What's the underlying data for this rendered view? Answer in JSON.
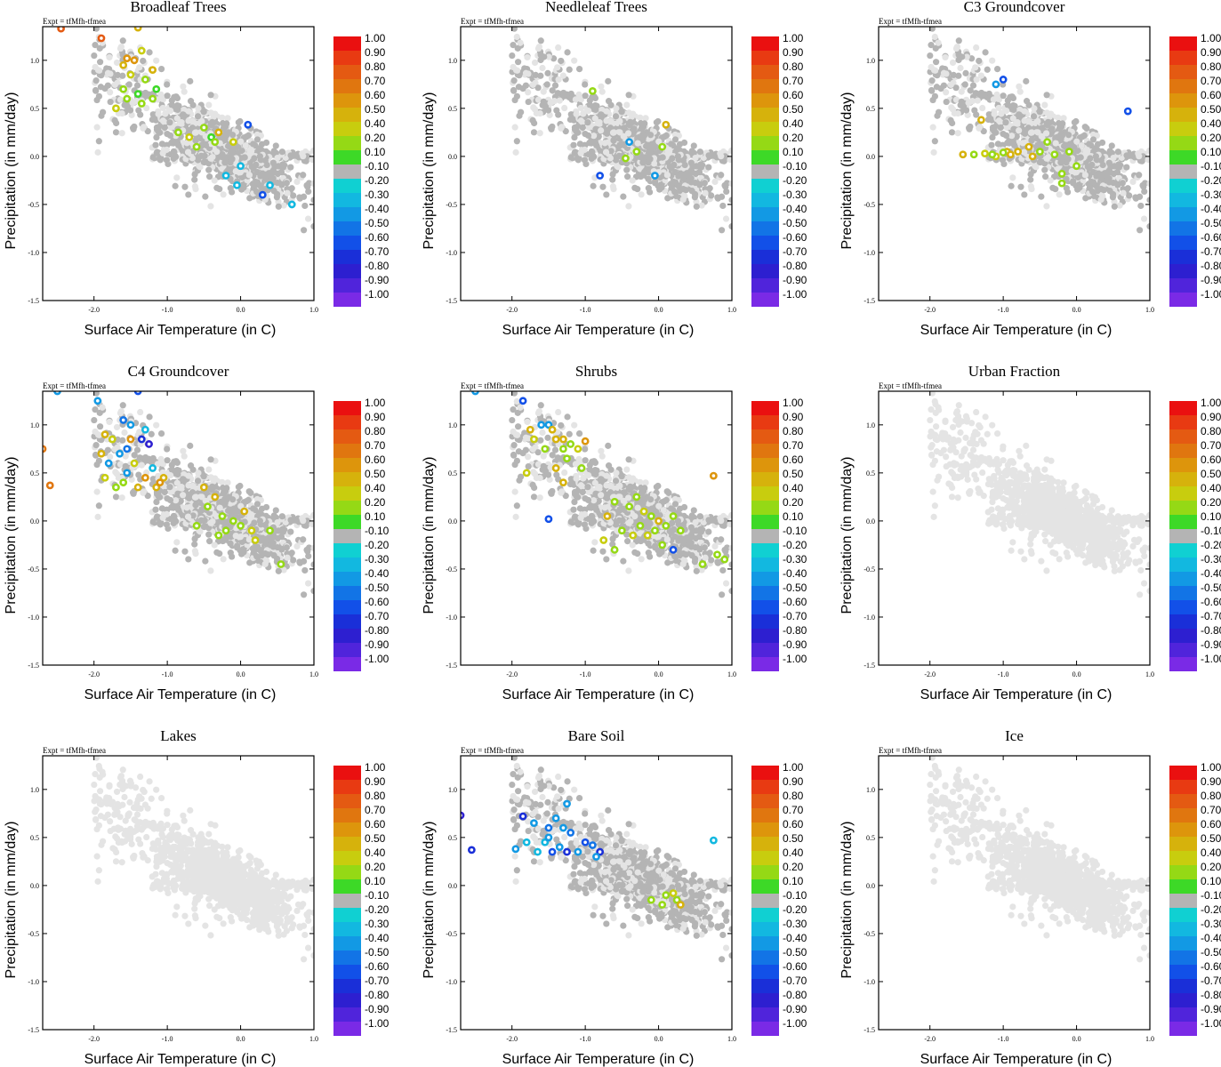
{
  "figure": {
    "expt_label": "Expt = tfMfh-tfmea",
    "xlabel": "Surface Air Temperature (in C)",
    "ylabel": "Precipitation (in mm/day)",
    "x_ticks": [
      "-2.0",
      "-1.0",
      "0.0",
      "1.0"
    ],
    "y_ticks": [
      "1.0",
      "0.5",
      "0.0",
      "-0.5",
      "-1.0",
      "-1.5"
    ],
    "colorbar": {
      "labels": [
        "1.00",
        "0.90",
        "0.80",
        "0.70",
        "0.60",
        "0.50",
        "0.40",
        "0.20",
        "0.10",
        "-0.10",
        "-0.20",
        "-0.30",
        "-0.40",
        "-0.50",
        "-0.60",
        "-0.70",
        "-0.80",
        "-0.90",
        "-1.00"
      ],
      "colors": [
        "#ea1010",
        "#e83a12",
        "#e45a12",
        "#e0760f",
        "#dd950c",
        "#d6b20c",
        "#c8cd0e",
        "#95d915",
        "#3dd927",
        "#b4b4b4",
        "#10d0d2",
        "#12b8e0",
        "#1299e4",
        "#1274e6",
        "#1250e8",
        "#1a2fd8",
        "#2d1fd0",
        "#5024db",
        "#7a2ae6"
      ]
    }
  },
  "chart_data": [
    {
      "type": "scatter",
      "title": "Broadleaf Trees",
      "xlim": [
        -2.7,
        1.0
      ],
      "ylim": [
        -1.5,
        1.35
      ],
      "xlabel": "Surface Air Temperature (in C)",
      "ylabel": "Precipitation (in mm/day)",
      "colorbar_range": [
        -1.0,
        1.0
      ],
      "highlight": [
        {
          "x": -2.45,
          "y": 1.33,
          "c": 0.8
        },
        {
          "x": -1.9,
          "y": 1.23,
          "c": 0.75
        },
        {
          "x": -1.4,
          "y": 1.34,
          "c": 0.45
        },
        {
          "x": -1.6,
          "y": 0.95,
          "c": 0.45
        },
        {
          "x": -1.55,
          "y": 1.02,
          "c": 0.55
        },
        {
          "x": -1.45,
          "y": 1.0,
          "c": 0.6
        },
        {
          "x": -1.35,
          "y": 1.1,
          "c": 0.35
        },
        {
          "x": -1.2,
          "y": 0.9,
          "c": 0.5
        },
        {
          "x": -1.5,
          "y": 0.85,
          "c": 0.3
        },
        {
          "x": -1.3,
          "y": 0.8,
          "c": 0.2
        },
        {
          "x": -1.6,
          "y": 0.7,
          "c": 0.2
        },
        {
          "x": -1.4,
          "y": 0.65,
          "c": 0.15
        },
        {
          "x": -1.15,
          "y": 0.7,
          "c": 0.15
        },
        {
          "x": -1.55,
          "y": 0.6,
          "c": 0.2
        },
        {
          "x": -1.7,
          "y": 0.5,
          "c": 0.35
        },
        {
          "x": -1.35,
          "y": 0.55,
          "c": 0.2
        },
        {
          "x": -1.2,
          "y": 0.6,
          "c": 0.2
        },
        {
          "x": -0.85,
          "y": 0.25,
          "c": 0.2
        },
        {
          "x": -0.7,
          "y": 0.2,
          "c": 0.35
        },
        {
          "x": -0.5,
          "y": 0.3,
          "c": 0.2
        },
        {
          "x": -0.4,
          "y": 0.2,
          "c": 0.15
        },
        {
          "x": -0.3,
          "y": 0.25,
          "c": 0.4
        },
        {
          "x": -0.35,
          "y": 0.15,
          "c": 0.2
        },
        {
          "x": -0.6,
          "y": 0.1,
          "c": 0.25
        },
        {
          "x": -0.1,
          "y": 0.15,
          "c": 0.3
        },
        {
          "x": 0.1,
          "y": 0.33,
          "c": -0.5
        },
        {
          "x": -0.05,
          "y": -0.3,
          "c": -0.25
        },
        {
          "x": 0.3,
          "y": -0.4,
          "c": -0.5
        },
        {
          "x": 0.7,
          "y": -0.5,
          "c": -0.25
        },
        {
          "x": 0.4,
          "y": -0.3,
          "c": -0.2
        },
        {
          "x": -0.2,
          "y": -0.2,
          "c": -0.2
        },
        {
          "x": 0.0,
          "y": -0.1,
          "c": -0.2
        }
      ]
    },
    {
      "type": "scatter",
      "title": "Needleleaf Trees",
      "xlim": [
        -2.7,
        1.0
      ],
      "ylim": [
        -1.5,
        1.35
      ],
      "xlabel": "Surface Air Temperature (in C)",
      "ylabel": "Precipitation (in mm/day)",
      "colorbar_range": [
        -1.0,
        1.0
      ],
      "highlight": [
        {
          "x": -0.9,
          "y": 0.68,
          "c": 0.25
        },
        {
          "x": 0.1,
          "y": 0.33,
          "c": 0.4
        },
        {
          "x": -0.8,
          "y": -0.2,
          "c": -0.5
        },
        {
          "x": -0.45,
          "y": -0.02,
          "c": 0.2
        },
        {
          "x": 0.05,
          "y": 0.1,
          "c": 0.2
        },
        {
          "x": -0.3,
          "y": 0.05,
          "c": 0.2
        },
        {
          "x": -0.05,
          "y": -0.2,
          "c": -0.3
        },
        {
          "x": -0.4,
          "y": 0.15,
          "c": -0.3
        }
      ]
    },
    {
      "type": "scatter",
      "title": "C3 Groundcover",
      "xlim": [
        -2.7,
        1.0
      ],
      "ylim": [
        -1.5,
        1.35
      ],
      "xlabel": "Surface Air Temperature (in C)",
      "ylabel": "Precipitation (in mm/day)",
      "colorbar_range": [
        -1.0,
        1.0
      ],
      "highlight": [
        {
          "x": -1.0,
          "y": 0.8,
          "c": -0.5
        },
        {
          "x": -1.1,
          "y": 0.75,
          "c": -0.3
        },
        {
          "x": 0.7,
          "y": 0.47,
          "c": -0.5
        },
        {
          "x": -1.55,
          "y": 0.02,
          "c": 0.4
        },
        {
          "x": -1.4,
          "y": 0.02,
          "c": 0.2
        },
        {
          "x": -1.25,
          "y": 0.03,
          "c": 0.35
        },
        {
          "x": -1.1,
          "y": 0.0,
          "c": 0.3
        },
        {
          "x": -0.95,
          "y": 0.05,
          "c": 0.4
        },
        {
          "x": -0.8,
          "y": 0.05,
          "c": 0.5
        },
        {
          "x": -0.65,
          "y": 0.1,
          "c": 0.5
        },
        {
          "x": -0.5,
          "y": 0.05,
          "c": 0.2
        },
        {
          "x": -0.3,
          "y": 0.02,
          "c": 0.2
        },
        {
          "x": -0.1,
          "y": 0.05,
          "c": 0.2
        },
        {
          "x": 0.0,
          "y": -0.1,
          "c": 0.2
        },
        {
          "x": -1.0,
          "y": 0.04,
          "c": 0.2
        },
        {
          "x": -0.2,
          "y": -0.28,
          "c": 0.2
        },
        {
          "x": -1.3,
          "y": 0.38,
          "c": 0.4
        },
        {
          "x": -0.9,
          "y": 0.02,
          "c": 0.4
        },
        {
          "x": -1.15,
          "y": 0.02,
          "c": 0.2
        },
        {
          "x": -0.6,
          "y": 0.0,
          "c": 0.4
        },
        {
          "x": -0.4,
          "y": 0.15,
          "c": 0.2
        },
        {
          "x": -0.2,
          "y": -0.18,
          "c": 0.2
        }
      ]
    },
    {
      "type": "scatter",
      "title": "C4 Groundcover",
      "xlim": [
        -2.7,
        1.0
      ],
      "ylim": [
        -1.5,
        1.35
      ],
      "xlabel": "Surface Air Temperature (in C)",
      "ylabel": "Precipitation (in mm/day)",
      "colorbar_range": [
        -1.0,
        1.0
      ],
      "highlight": [
        {
          "x": -2.5,
          "y": 1.35,
          "c": -0.3
        },
        {
          "x": -2.7,
          "y": 0.75,
          "c": 0.7
        },
        {
          "x": -2.6,
          "y": 0.37,
          "c": 0.7
        },
        {
          "x": -1.95,
          "y": 1.25,
          "c": -0.3
        },
        {
          "x": -1.4,
          "y": 1.35,
          "c": -0.55
        },
        {
          "x": -1.6,
          "y": 1.05,
          "c": -0.4
        },
        {
          "x": -1.5,
          "y": 1.0,
          "c": -0.3
        },
        {
          "x": -1.3,
          "y": 0.95,
          "c": -0.2
        },
        {
          "x": -1.85,
          "y": 0.9,
          "c": 0.45
        },
        {
          "x": -1.75,
          "y": 0.85,
          "c": 0.3
        },
        {
          "x": -1.5,
          "y": 0.85,
          "c": 0.6
        },
        {
          "x": -1.35,
          "y": 0.85,
          "c": -0.7
        },
        {
          "x": -1.25,
          "y": 0.8,
          "c": -0.8
        },
        {
          "x": -1.55,
          "y": 0.75,
          "c": -0.4
        },
        {
          "x": -1.65,
          "y": 0.7,
          "c": -0.3
        },
        {
          "x": -1.9,
          "y": 0.7,
          "c": 0.5
        },
        {
          "x": -1.8,
          "y": 0.6,
          "c": -0.3
        },
        {
          "x": -1.45,
          "y": 0.6,
          "c": 0.3
        },
        {
          "x": -1.2,
          "y": 0.55,
          "c": -0.2
        },
        {
          "x": -1.3,
          "y": 0.45,
          "c": 0.6
        },
        {
          "x": -1.05,
          "y": 0.45,
          "c": 0.5
        },
        {
          "x": -1.55,
          "y": 0.5,
          "c": -0.3
        },
        {
          "x": -1.85,
          "y": 0.45,
          "c": 0.3
        },
        {
          "x": -1.7,
          "y": 0.35,
          "c": 0.2
        },
        {
          "x": -1.4,
          "y": 0.35,
          "c": 0.45
        },
        {
          "x": -1.6,
          "y": 0.4,
          "c": 0.2
        },
        {
          "x": -0.5,
          "y": 0.35,
          "c": 0.4
        },
        {
          "x": -0.35,
          "y": 0.25,
          "c": 0.4
        },
        {
          "x": -0.45,
          "y": 0.15,
          "c": 0.2
        },
        {
          "x": -0.25,
          "y": 0.05,
          "c": 0.2
        },
        {
          "x": -0.1,
          "y": 0.0,
          "c": 0.2
        },
        {
          "x": 0.0,
          "y": -0.05,
          "c": 0.2
        },
        {
          "x": 0.15,
          "y": -0.1,
          "c": 0.3
        },
        {
          "x": -0.2,
          "y": -0.1,
          "c": 0.2
        },
        {
          "x": 0.2,
          "y": -0.2,
          "c": 0.3
        },
        {
          "x": 0.4,
          "y": -0.1,
          "c": 0.2
        },
        {
          "x": 0.55,
          "y": -0.45,
          "c": 0.2
        },
        {
          "x": -0.6,
          "y": -0.05,
          "c": 0.2
        },
        {
          "x": -0.3,
          "y": -0.15,
          "c": 0.2
        },
        {
          "x": 0.05,
          "y": 0.1,
          "c": 0.4
        },
        {
          "x": -1.15,
          "y": 0.35,
          "c": 0.4
        },
        {
          "x": -1.1,
          "y": 0.4,
          "c": 0.6
        }
      ]
    },
    {
      "type": "scatter",
      "title": "Shrubs",
      "xlim": [
        -2.7,
        1.0
      ],
      "ylim": [
        -1.5,
        1.35
      ],
      "xlabel": "Surface Air Temperature (in C)",
      "ylabel": "Precipitation (in mm/day)",
      "colorbar_range": [
        -1.0,
        1.0
      ],
      "highlight": [
        {
          "x": -2.5,
          "y": 1.35,
          "c": -0.3
        },
        {
          "x": -1.85,
          "y": 1.25,
          "c": -0.5
        },
        {
          "x": -1.6,
          "y": 1.0,
          "c": -0.3
        },
        {
          "x": -1.5,
          "y": 1.0,
          "c": -0.3
        },
        {
          "x": -1.75,
          "y": 0.95,
          "c": 0.4
        },
        {
          "x": -1.45,
          "y": 0.95,
          "c": 0.4
        },
        {
          "x": -1.4,
          "y": 0.85,
          "c": 0.4
        },
        {
          "x": -1.3,
          "y": 0.85,
          "c": 0.4
        },
        {
          "x": -1.7,
          "y": 0.85,
          "c": 0.3
        },
        {
          "x": -1.55,
          "y": 0.75,
          "c": 0.2
        },
        {
          "x": -1.3,
          "y": 0.75,
          "c": 0.2
        },
        {
          "x": -1.2,
          "y": 0.8,
          "c": 0.2
        },
        {
          "x": -1.0,
          "y": 0.83,
          "c": 0.6
        },
        {
          "x": -1.1,
          "y": 0.75,
          "c": 0.3
        },
        {
          "x": -1.25,
          "y": 0.65,
          "c": 0.2
        },
        {
          "x": -1.05,
          "y": 0.55,
          "c": 0.2
        },
        {
          "x": -1.4,
          "y": 0.55,
          "c": 0.4
        },
        {
          "x": -1.8,
          "y": 0.5,
          "c": 0.3
        },
        {
          "x": -1.3,
          "y": 0.4,
          "c": 0.4
        },
        {
          "x": -0.6,
          "y": 0.2,
          "c": 0.2
        },
        {
          "x": -0.4,
          "y": 0.15,
          "c": 0.2
        },
        {
          "x": -0.3,
          "y": 0.25,
          "c": 0.2
        },
        {
          "x": -0.2,
          "y": 0.1,
          "c": 0.3
        },
        {
          "x": -0.1,
          "y": 0.05,
          "c": 0.2
        },
        {
          "x": 0.0,
          "y": 0.0,
          "c": 0.4
        },
        {
          "x": 0.1,
          "y": -0.05,
          "c": 0.2
        },
        {
          "x": 0.2,
          "y": 0.05,
          "c": 0.2
        },
        {
          "x": 0.3,
          "y": -0.1,
          "c": 0.2
        },
        {
          "x": -0.5,
          "y": -0.1,
          "c": 0.2
        },
        {
          "x": -0.35,
          "y": -0.15,
          "c": 0.3
        },
        {
          "x": -0.25,
          "y": -0.05,
          "c": 0.2
        },
        {
          "x": -0.15,
          "y": -0.15,
          "c": 0.3
        },
        {
          "x": -0.05,
          "y": -0.1,
          "c": 0.2
        },
        {
          "x": 0.75,
          "y": 0.47,
          "c": 0.6
        },
        {
          "x": 0.6,
          "y": -0.45,
          "c": 0.2
        },
        {
          "x": 0.8,
          "y": -0.35,
          "c": 0.2
        },
        {
          "x": 0.9,
          "y": -0.4,
          "c": 0.2
        },
        {
          "x": -1.5,
          "y": 0.02,
          "c": -0.5
        },
        {
          "x": -0.75,
          "y": -0.2,
          "c": 0.3
        },
        {
          "x": -0.6,
          "y": -0.3,
          "c": 0.2
        },
        {
          "x": 0.2,
          "y": -0.3,
          "c": -0.5
        },
        {
          "x": -0.7,
          "y": 0.05,
          "c": 0.4
        },
        {
          "x": 0.05,
          "y": -0.25,
          "c": 0.2
        }
      ]
    },
    {
      "type": "scatter",
      "title": "Urban Fraction",
      "xlim": [
        -2.7,
        1.0
      ],
      "ylim": [
        -1.5,
        1.35
      ],
      "xlabel": "Surface Air Temperature (in C)",
      "ylabel": "Precipitation (in mm/day)",
      "colorbar_range": [
        -1.0,
        1.0
      ],
      "highlight": []
    },
    {
      "type": "scatter",
      "title": "Lakes",
      "xlim": [
        -2.7,
        1.0
      ],
      "ylim": [
        -1.5,
        1.35
      ],
      "xlabel": "Surface Air Temperature (in C)",
      "ylabel": "Precipitation (in mm/day)",
      "colorbar_range": [
        -1.0,
        1.0
      ],
      "highlight": []
    },
    {
      "type": "scatter",
      "title": "Bare Soil",
      "xlim": [
        -2.7,
        1.0
      ],
      "ylim": [
        -1.5,
        1.35
      ],
      "xlabel": "Surface Air Temperature (in C)",
      "ylabel": "Precipitation (in mm/day)",
      "colorbar_range": [
        -1.0,
        1.0
      ],
      "highlight": [
        {
          "x": -2.7,
          "y": 0.73,
          "c": -0.75
        },
        {
          "x": -2.55,
          "y": 0.37,
          "c": -0.65
        },
        {
          "x": -1.85,
          "y": 0.72,
          "c": -0.7
        },
        {
          "x": -1.7,
          "y": 0.65,
          "c": -0.3
        },
        {
          "x": -1.5,
          "y": 0.6,
          "c": -0.4
        },
        {
          "x": -1.3,
          "y": 0.6,
          "c": -0.3
        },
        {
          "x": -1.2,
          "y": 0.55,
          "c": -0.45
        },
        {
          "x": -1.55,
          "y": 0.45,
          "c": -0.25
        },
        {
          "x": -1.8,
          "y": 0.45,
          "c": -0.2
        },
        {
          "x": -1.65,
          "y": 0.35,
          "c": -0.2
        },
        {
          "x": -1.45,
          "y": 0.35,
          "c": -0.5
        },
        {
          "x": -1.35,
          "y": 0.4,
          "c": -0.3
        },
        {
          "x": -1.25,
          "y": 0.35,
          "c": -0.7
        },
        {
          "x": -1.1,
          "y": 0.35,
          "c": -0.3
        },
        {
          "x": -1.0,
          "y": 0.45,
          "c": -0.6
        },
        {
          "x": -0.9,
          "y": 0.42,
          "c": -0.45
        },
        {
          "x": -0.8,
          "y": 0.35,
          "c": -0.65
        },
        {
          "x": -1.95,
          "y": 0.38,
          "c": -0.3
        },
        {
          "x": -1.4,
          "y": 0.7,
          "c": -0.3
        },
        {
          "x": -1.25,
          "y": 0.85,
          "c": -0.3
        },
        {
          "x": -0.85,
          "y": 0.3,
          "c": -0.3
        },
        {
          "x": -1.5,
          "y": 0.5,
          "c": -0.3
        },
        {
          "x": 0.75,
          "y": 0.47,
          "c": -0.25
        },
        {
          "x": 0.1,
          "y": -0.1,
          "c": 0.2
        },
        {
          "x": 0.25,
          "y": -0.15,
          "c": 0.2
        },
        {
          "x": 0.2,
          "y": -0.08,
          "c": 0.3
        },
        {
          "x": 0.05,
          "y": -0.2,
          "c": 0.2
        },
        {
          "x": -0.1,
          "y": -0.15,
          "c": 0.2
        },
        {
          "x": 0.3,
          "y": -0.2,
          "c": 0.4
        }
      ]
    },
    {
      "type": "scatter",
      "title": "Ice",
      "xlim": [
        -2.7,
        1.0
      ],
      "ylim": [
        -1.5,
        1.35
      ],
      "xlabel": "Surface Air Temperature (in C)",
      "ylabel": "Precipitation (in mm/day)",
      "colorbar_range": [
        -1.0,
        1.0
      ],
      "highlight": []
    }
  ]
}
